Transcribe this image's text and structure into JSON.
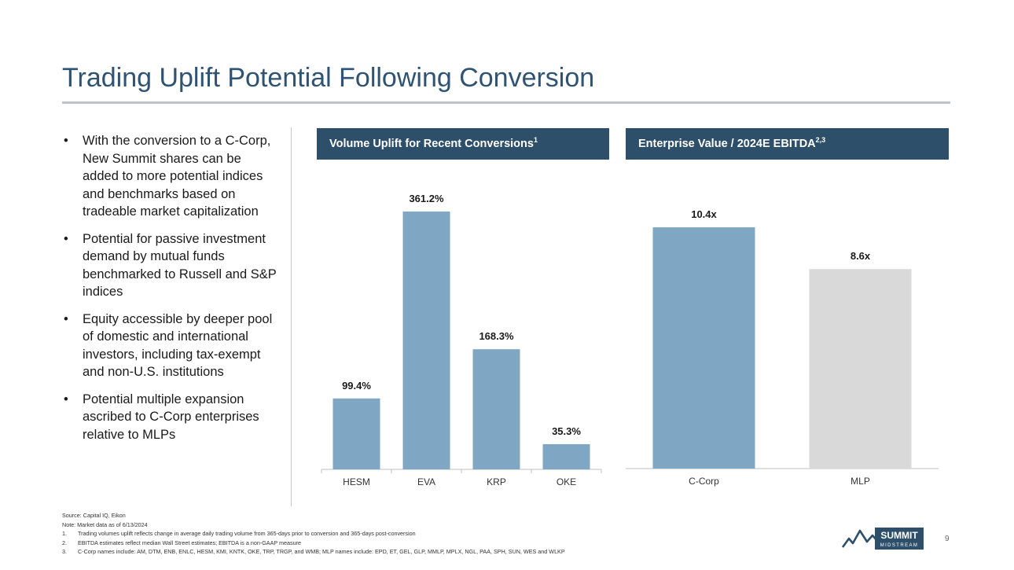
{
  "title": "Trading Uplift Potential Following Conversion",
  "bullets": [
    "With the conversion to a C-Corp, New Summit shares can be added to more potential indices and benchmarks based on tradeable market capitalization",
    "Potential for passive investment demand by mutual funds benchmarked to Russell and S&P indices",
    "Equity accessible by deeper pool of domestic and international investors, including tax-exempt and non-U.S. institutions",
    "Potential multiple expansion ascribed to C-Corp enterprises relative to MLPs"
  ],
  "bullet_glyph": "•",
  "panels": {
    "volume": {
      "title": "Volume Uplift for Recent Conversions",
      "sup": "1"
    },
    "ev": {
      "title": "Enterprise Value / 2024E EBITDA",
      "sup": "2,3"
    }
  },
  "colors": {
    "bar_blue": "#7fa7c4",
    "bar_grey": "#d9d9d9",
    "header_navy": "#2e4f6a",
    "title_blue": "#2f5373"
  },
  "chart_data": [
    {
      "type": "bar",
      "title": "Volume Uplift for Recent Conversions",
      "categories": [
        "HESM",
        "EVA",
        "KRP",
        "OKE"
      ],
      "values": [
        99.4,
        361.2,
        168.3,
        35.3
      ],
      "labels": [
        "99.4%",
        "361.2%",
        "168.3%",
        "35.3%"
      ],
      "ylim": [
        0,
        380
      ],
      "grid": false,
      "bar_colors": [
        "#7fa7c4",
        "#7fa7c4",
        "#7fa7c4",
        "#7fa7c4"
      ]
    },
    {
      "type": "bar",
      "title": "Enterprise Value / 2024E EBITDA",
      "categories": [
        "C-Corp",
        "MLP"
      ],
      "values": [
        10.4,
        8.6
      ],
      "labels": [
        "10.4x",
        "8.6x"
      ],
      "ylim": [
        0,
        12.2
      ],
      "grid": false,
      "bar_colors": [
        "#7fa7c4",
        "#d9d9d9"
      ]
    }
  ],
  "footnotes": {
    "source": "Source: Capital IQ, Eikon",
    "note": "Note: Market data as of 6/13/2024",
    "items": [
      {
        "num": "1.",
        "text": "Trading volumes uplift reflects change in average daily trading volume from 365-days prior to conversion and 365-days post-conversion"
      },
      {
        "num": "2.",
        "text": "EBITDA estimates reflect median Wall Street estimates; EBITDA is a non-GAAP measure"
      },
      {
        "num": "3.",
        "text": "C-Corp names include: AM, DTM, ENB, ENLC, HESM, KMI, KNTK, OKE, TRP, TRGP, and WMB; MLP names include: EPD, ET, GEL, GLP, MMLP, MPLX, NGL, PAA, SPH, SUN, WES and WLKP"
      }
    ]
  },
  "logo": {
    "line1": "SUMMIT",
    "line2": "MIDSTREAM"
  },
  "page_number": "9"
}
